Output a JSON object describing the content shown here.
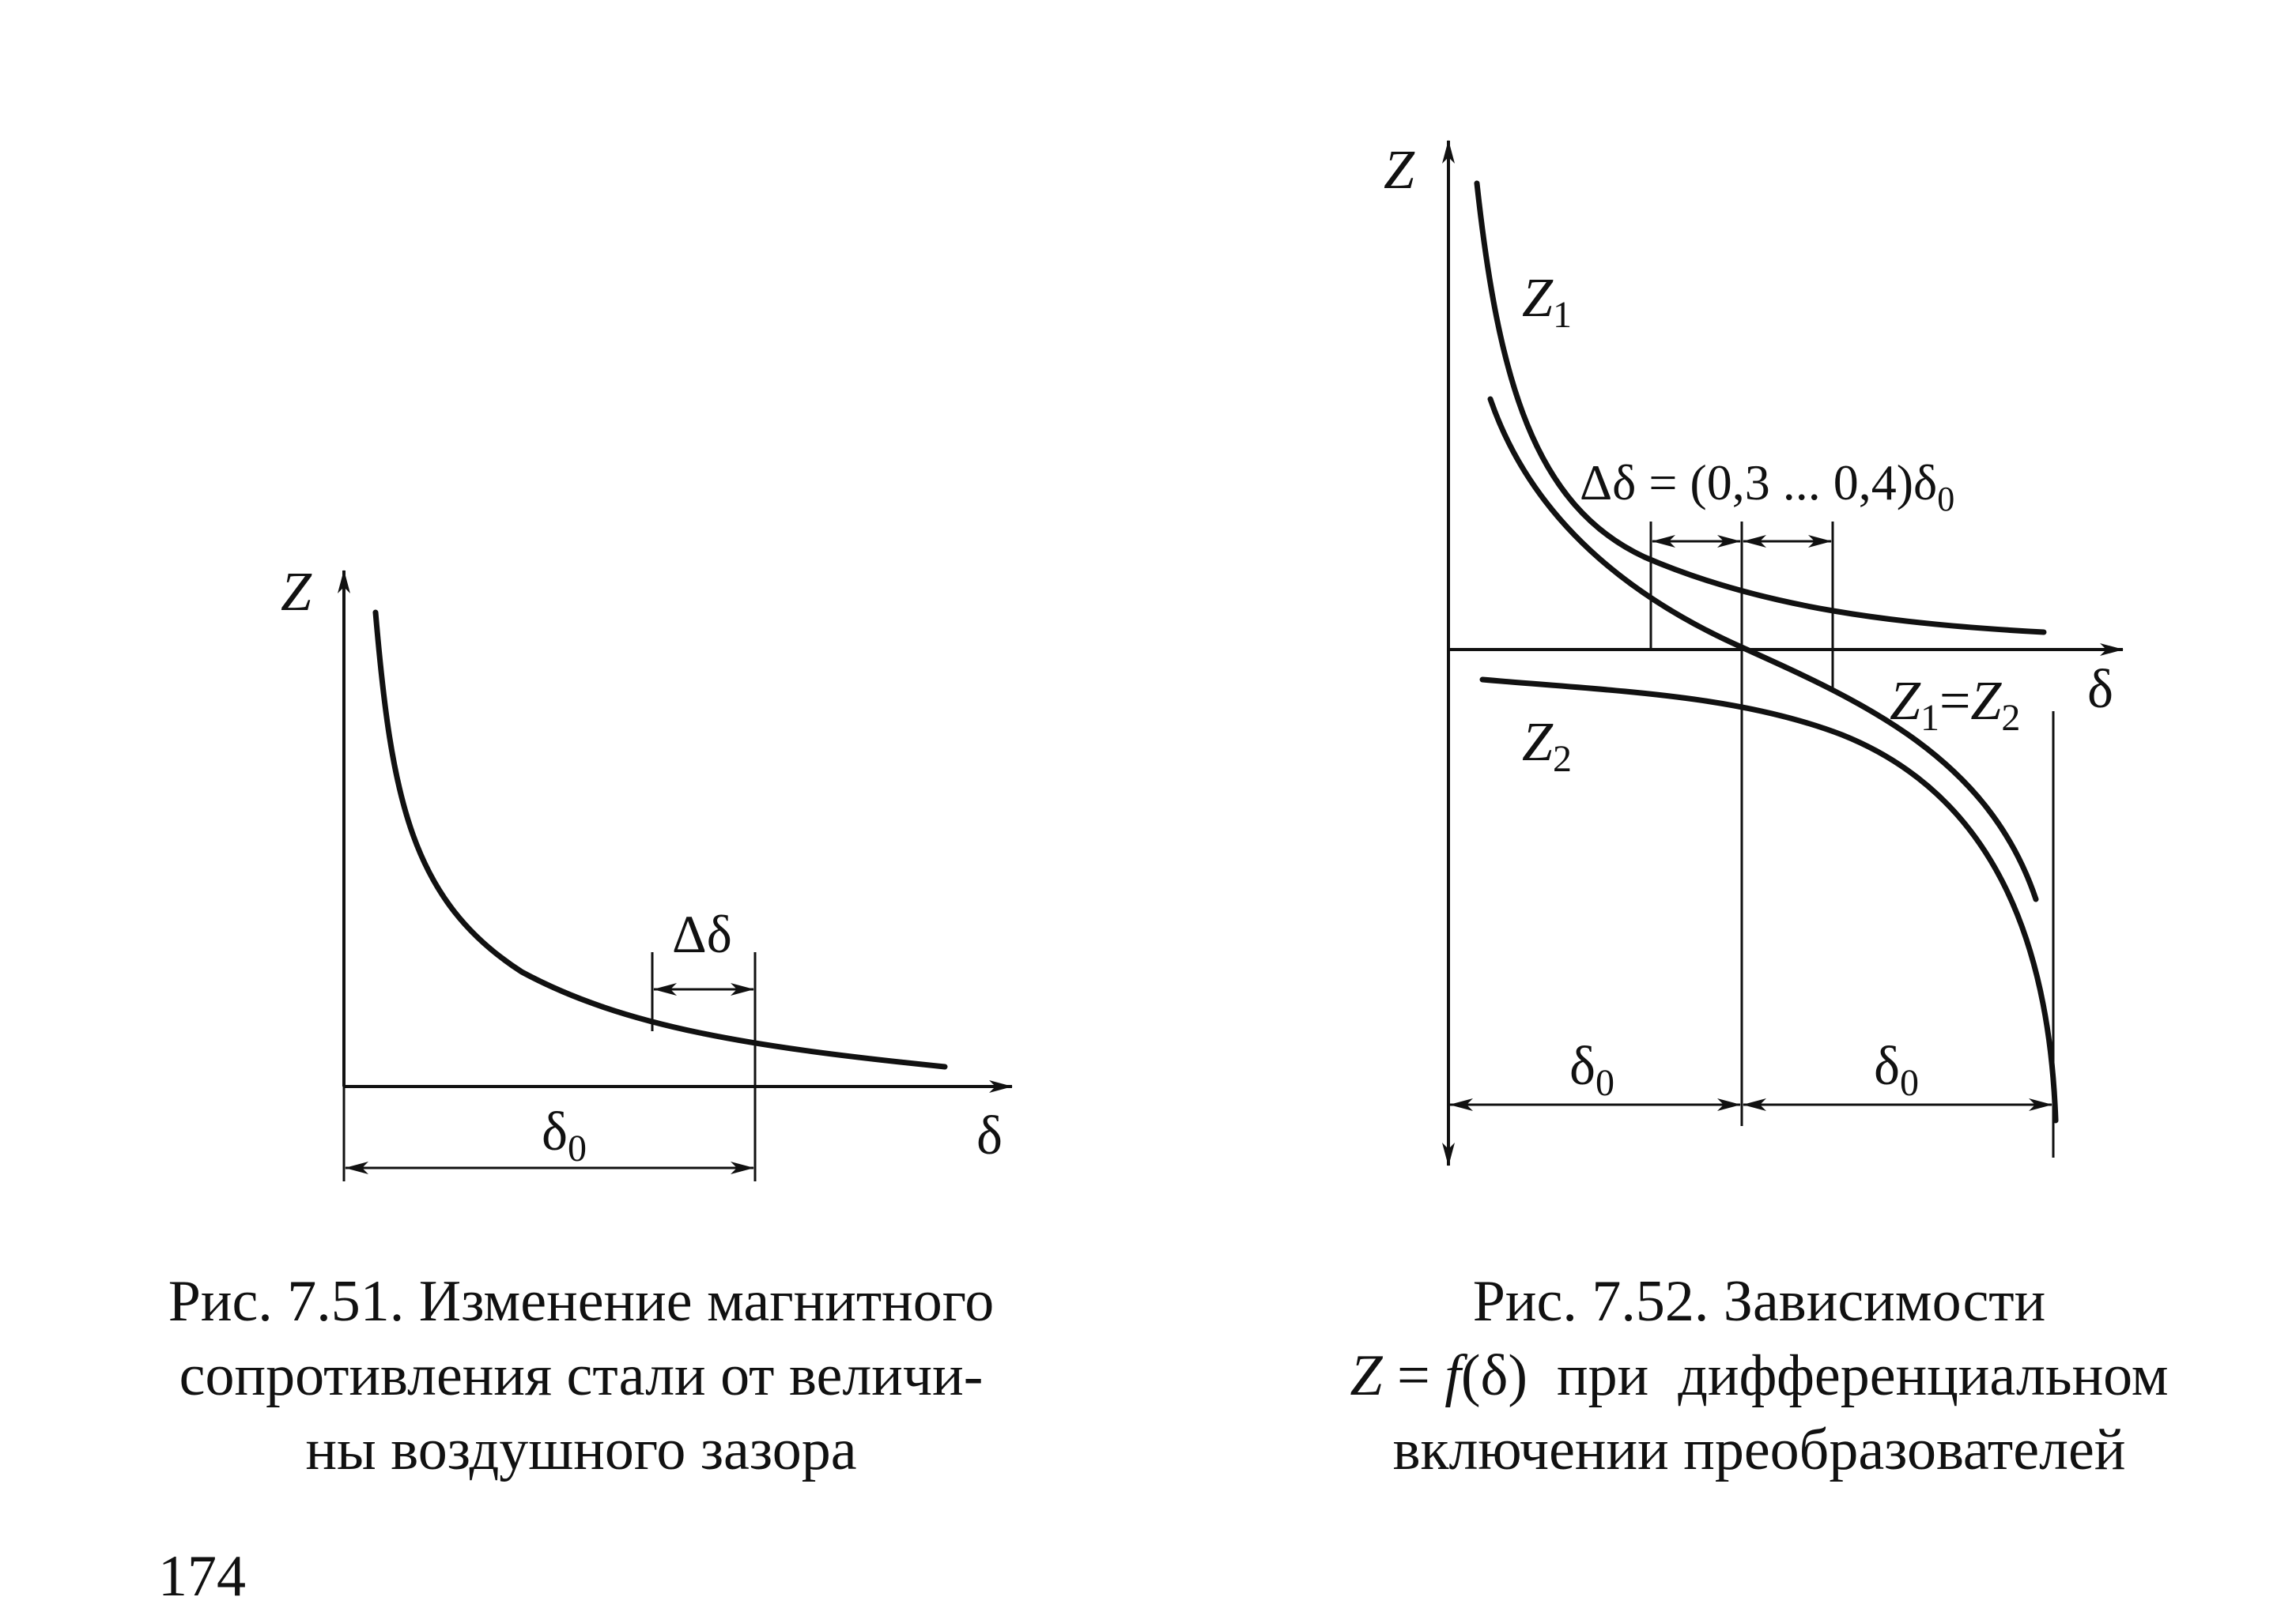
{
  "page_number": "174",
  "figure_751": {
    "axis_y_label": "Z",
    "axis_x_label": "δ",
    "delta_label": "Δδ",
    "delta0_label": "δ",
    "delta0_sub": "0",
    "caption_lines": [
      "Рис. 7.51. Изменение магнитного",
      "сопротивления стали от величи-",
      "ны воздушного зазора"
    ]
  },
  "figure_752": {
    "axis_y_label": "Z",
    "axis_x_label": "δ",
    "z1_main": "Z",
    "z1_sub": "1",
    "z2_main": "Z",
    "z2_sub": "2",
    "eq_left_main": "Z",
    "eq_left_sub": "1",
    "eq_sign": "=",
    "eq_right_main": "Z",
    "eq_right_sub": "2",
    "delta_range_main": "Δδ = (0,3 ... 0,4)δ",
    "delta_range_sub": "0",
    "delta0_left": "δ",
    "delta0_left_sub": "0",
    "delta0_right": "δ",
    "delta0_right_sub": "0",
    "caption_line1": "Рис. 7.52. Зависимости",
    "caption_line2_z": "Z",
    "caption_line2_eq": " = ",
    "caption_line2_f": "f",
    "caption_line2_rest": "(δ)  при  дифференциальном",
    "caption_line3": "включении преобразователей"
  }
}
